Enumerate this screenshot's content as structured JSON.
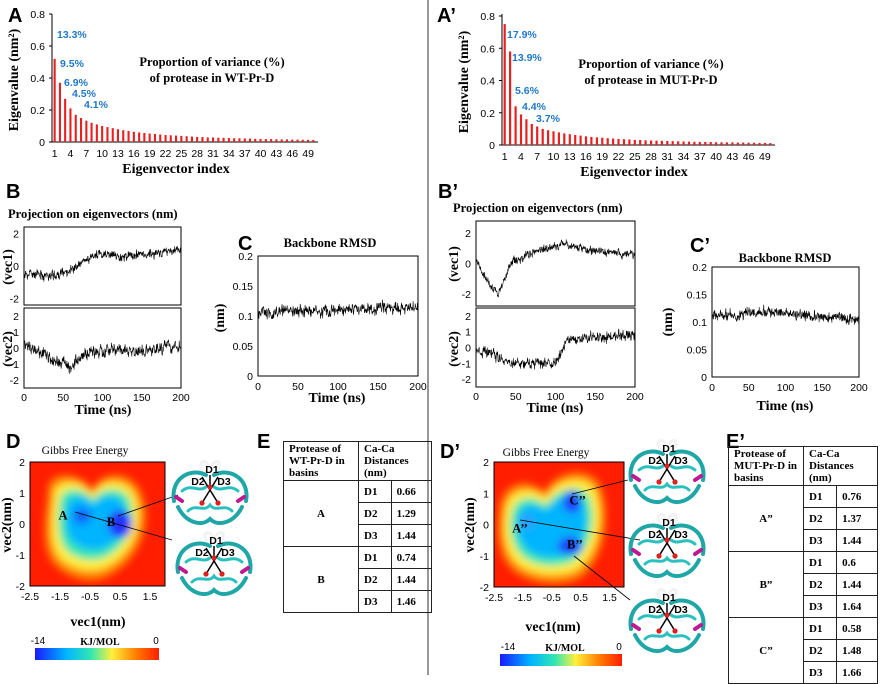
{
  "panel_labels": {
    "A": "A",
    "A2": "A’",
    "B": "B",
    "B2": "B’",
    "C": "C",
    "C2": "C’",
    "D": "D",
    "D2": "D’",
    "E": "E",
    "E2": "E’"
  },
  "axis_labels": {
    "eigenvalue": "Eigenvalue (nm²)",
    "eigenvector_index": "Eigenvector index",
    "projection_title": "Projection on eigenvectors (nm)",
    "vec1": "(vec1)",
    "vec2": "(vec2)",
    "time": "Time (ns)",
    "rmsd_title": "Backbone RMSD",
    "nm": "(nm)",
    "vec1_nm": "vec1(nm)",
    "vec2_nm": "vec2(nm)",
    "gibbs": "Gibbs Free Energy",
    "energy_unit": "KJ/MOL"
  },
  "colorbar": {
    "min": "-14",
    "max": "0",
    "colors": [
      "#1a1aff",
      "#00b4ff",
      "#32e6b4",
      "#fff03c",
      "#ff7a00",
      "#ff1e00"
    ]
  },
  "chart_data": [
    {
      "id": "A",
      "type": "bar",
      "title": "Proportion of variance (%) of protease in WT-Pr-D",
      "title_line1": "Proportion of variance (%)",
      "title_line2": "of protease in WT-Pr-D",
      "xlabel": "Eigenvector index",
      "ylabel": "Eigenvalue (nm²)",
      "ylim": [
        0,
        0.8
      ],
      "yticks": [
        "0",
        "0.2",
        "0.4",
        "0.6",
        "0.8"
      ],
      "xticks": [
        "1",
        "4",
        "7",
        "10",
        "13",
        "16",
        "19",
        "22",
        "25",
        "28",
        "31",
        "34",
        "37",
        "40",
        "43",
        "46",
        "49"
      ],
      "values": [
        0.52,
        0.37,
        0.27,
        0.21,
        0.17,
        0.15,
        0.133,
        0.12,
        0.11,
        0.1,
        0.093,
        0.086,
        0.08,
        0.074,
        0.069,
        0.064,
        0.06,
        0.056,
        0.053,
        0.05,
        0.047,
        0.044,
        0.042,
        0.04,
        0.038,
        0.036,
        0.034,
        0.032,
        0.031,
        0.029,
        0.028,
        0.027,
        0.026,
        0.025,
        0.024,
        0.023,
        0.022,
        0.021,
        0.02,
        0.019,
        0.018,
        0.018,
        0.017,
        0.016,
        0.016,
        0.015,
        0.015,
        0.014,
        0.014,
        0.013
      ],
      "bar_color": "#e82020",
      "annotations": [
        "13.3%",
        "9.5%",
        "6.9%",
        "4.5%",
        "4.1%"
      ]
    },
    {
      "id": "A’",
      "type": "bar",
      "title": "Proportion of variance (%) of protease in MUT-Pr-D",
      "title_line1": "Proportion of variance (%)",
      "title_line2": "of protease in  MUT-Pr-D",
      "xlabel": "Eigenvector index",
      "ylabel": "Eigenvalue (nm²)",
      "ylim": [
        0,
        0.8
      ],
      "yticks": [
        "0",
        "0.2",
        "0.4",
        "0.6",
        "0.8"
      ],
      "xticks": [
        "1",
        "4",
        "7",
        "10",
        "13",
        "16",
        "19",
        "22",
        "25",
        "28",
        "31",
        "34",
        "37",
        "40",
        "43",
        "46",
        "49"
      ],
      "values": [
        0.75,
        0.58,
        0.24,
        0.19,
        0.16,
        0.13,
        0.115,
        0.1,
        0.092,
        0.085,
        0.078,
        0.072,
        0.067,
        0.062,
        0.058,
        0.054,
        0.05,
        0.047,
        0.045,
        0.042,
        0.04,
        0.038,
        0.036,
        0.034,
        0.032,
        0.031,
        0.029,
        0.028,
        0.027,
        0.026,
        0.025,
        0.024,
        0.023,
        0.022,
        0.021,
        0.02,
        0.019,
        0.019,
        0.018,
        0.017,
        0.017,
        0.016,
        0.016,
        0.015,
        0.015,
        0.014,
        0.014,
        0.013,
        0.013,
        0.012
      ],
      "bar_color": "#e82020",
      "annotations": [
        "17.9%",
        "13.9%",
        "5.6%",
        "4.4%",
        "3.7%"
      ]
    },
    {
      "id": "B",
      "type": "line",
      "title": "Projection on eigenvectors (nm)",
      "xlabel": "Time (ns)",
      "xlim": [
        0,
        200
      ],
      "xticks": [
        "0",
        "50",
        "100",
        "150",
        "200"
      ],
      "vec1": {
        "yticks": [
          "-2",
          "0",
          "2"
        ],
        "ylim": [
          -2.4,
          2.4
        ],
        "trend": [
          [
            0,
            -0.5
          ],
          [
            40,
            -0.6
          ],
          [
            70,
            0.0
          ],
          [
            90,
            0.7
          ],
          [
            130,
            0.6
          ],
          [
            170,
            0.8
          ],
          [
            200,
            1.0
          ]
        ],
        "noise": 0.45
      },
      "vec2": {
        "yticks": [
          "-2",
          "-1",
          "0",
          "1",
          "2"
        ],
        "ylim": [
          -2.5,
          2.5
        ],
        "trend": [
          [
            0,
            0.3
          ],
          [
            30,
            -0.5
          ],
          [
            60,
            -1.2
          ],
          [
            80,
            -0.4
          ],
          [
            110,
            -0.1
          ],
          [
            150,
            -0.3
          ],
          [
            200,
            0.2
          ]
        ],
        "noise": 0.55
      }
    },
    {
      "id": "B’",
      "type": "line",
      "title": "Projection on eigenvectors (nm)",
      "xlabel": "Time (ns)",
      "xlim": [
        0,
        200
      ],
      "xticks": [
        "0",
        "50",
        "100",
        "150",
        "200"
      ],
      "vec1": {
        "yticks": [
          "-2",
          "0",
          "2"
        ],
        "ylim": [
          -2.8,
          2.8
        ],
        "trend": [
          [
            0,
            0.0
          ],
          [
            15,
            -1.2
          ],
          [
            28,
            -2.0
          ],
          [
            45,
            0.1
          ],
          [
            80,
            0.9
          ],
          [
            110,
            1.3
          ],
          [
            150,
            0.8
          ],
          [
            200,
            0.6
          ]
        ],
        "noise": 0.4
      },
      "vec2": {
        "yticks": [
          "-2",
          "-1",
          "0",
          "1",
          "2"
        ],
        "ylim": [
          -2.5,
          2.5
        ],
        "trend": [
          [
            0,
            -0.3
          ],
          [
            20,
            -0.3
          ],
          [
            40,
            -1.0
          ],
          [
            100,
            -1.0
          ],
          [
            115,
            0.5
          ],
          [
            150,
            0.6
          ],
          [
            200,
            0.8
          ]
        ],
        "noise": 0.5
      }
    },
    {
      "id": "C",
      "type": "line",
      "title": "Backbone RMSD",
      "xlabel": "Time (ns)",
      "ylabel": "(nm)",
      "xlim": [
        0,
        200
      ],
      "ylim": [
        0,
        0.2
      ],
      "xticks": [
        "0",
        "50",
        "100",
        "150",
        "200"
      ],
      "yticks": [
        "0",
        "0.05",
        "0.1",
        "0.15",
        "0.2"
      ],
      "trend": [
        [
          0,
          0.105
        ],
        [
          100,
          0.11
        ],
        [
          200,
          0.115
        ]
      ],
      "noise": 0.015
    },
    {
      "id": "C’",
      "type": "line",
      "title": "Backbone RMSD",
      "xlabel": "Time (ns)",
      "ylabel": "(nm)",
      "xlim": [
        0,
        200
      ],
      "ylim": [
        0,
        0.2
      ],
      "xticks": [
        "0",
        "50",
        "100",
        "150",
        "200"
      ],
      "yticks": [
        "0",
        "0.05",
        "0.1",
        "0.15",
        "0.2"
      ],
      "trend": [
        [
          0,
          0.11
        ],
        [
          90,
          0.12
        ],
        [
          130,
          0.11
        ],
        [
          200,
          0.105
        ]
      ],
      "noise": 0.014
    },
    {
      "id": "D",
      "type": "heatmap",
      "title": "Gibbs Free Energy",
      "xlabel": "vec1(nm)",
      "ylabel": "vec2(nm)",
      "xlim": [
        -2.5,
        2.0
      ],
      "ylim": [
        -2,
        2
      ],
      "xticks": [
        "-2.5",
        "-1.5",
        "-0.5",
        "0.5",
        "1.5"
      ],
      "yticks": [
        "-2",
        "-1",
        "0",
        "1",
        "2"
      ],
      "basins": [
        {
          "label": "A",
          "x": -1.4,
          "y": 0.3
        },
        {
          "label": "B",
          "x": 0.2,
          "y": 0.1
        }
      ]
    },
    {
      "id": "D’",
      "type": "heatmap",
      "title": "Gibbs Free Energy",
      "xlabel": "vec1(nm)",
      "ylabel": "vec2(nm)",
      "xlim": [
        -2.5,
        2.0
      ],
      "ylim": [
        -2,
        2
      ],
      "xticks": [
        "-2.5",
        "-1.5",
        "-0.5",
        "0.5",
        "1.5"
      ],
      "yticks": [
        "-2",
        "-1",
        "0",
        "1",
        "2"
      ],
      "basins": [
        {
          "label": "A’’",
          "x": -1.6,
          "y": -0.1
        },
        {
          "label": "B’’",
          "x": 0.3,
          "y": -0.6
        },
        {
          "label": "C’’",
          "x": 0.4,
          "y": 0.8
        }
      ]
    }
  ],
  "tables": {
    "E": {
      "header": [
        "Protease of WT-Pr-D in basins",
        "Ca-Ca Distances (nm)"
      ],
      "groups": [
        {
          "basin": "A",
          "rows": [
            [
              "D1",
              "0.66"
            ],
            [
              "D2",
              "1.29"
            ],
            [
              "D3",
              "1.44"
            ]
          ]
        },
        {
          "basin": "B",
          "rows": [
            [
              "D1",
              "0.74"
            ],
            [
              "D2",
              "1.44"
            ],
            [
              "D3",
              "1.46"
            ]
          ]
        }
      ]
    },
    "E2": {
      "header": [
        "Protease of MUT-Pr-D in basins",
        "Ca-Ca Distances (nm)"
      ],
      "groups": [
        {
          "basin": "A”",
          "rows": [
            [
              "D1",
              "0.76"
            ],
            [
              "D2",
              "1.37"
            ],
            [
              "D3",
              "1.44"
            ]
          ]
        },
        {
          "basin": "B”",
          "rows": [
            [
              "D1",
              "0.6"
            ],
            [
              "D2",
              "1.44"
            ],
            [
              "D3",
              "1.64"
            ]
          ]
        },
        {
          "basin": "C”",
          "rows": [
            [
              "D1",
              "0.58"
            ],
            [
              "D2",
              "1.48"
            ],
            [
              "D3",
              "1.66"
            ]
          ]
        }
      ]
    }
  },
  "structure_labels": {
    "d1": "D1",
    "d2": "D2",
    "d3": "D3"
  }
}
